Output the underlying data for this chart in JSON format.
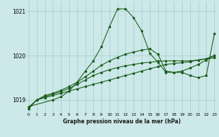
{
  "title": "Graphe pression niveau de la mer (hPa)",
  "background_color": "#cce8e8",
  "grid_color": "#aad0d0",
  "line_color": "#1a5c1a",
  "xlim": [
    -0.3,
    23.3
  ],
  "ylim": [
    1018.72,
    1021.22
  ],
  "yticks": [
    1019,
    1020,
    1021
  ],
  "xticks": [
    0,
    1,
    2,
    3,
    4,
    5,
    6,
    7,
    8,
    9,
    10,
    11,
    12,
    13,
    14,
    15,
    16,
    17,
    18,
    19,
    20,
    21,
    22,
    23
  ],
  "series": [
    {
      "x": [
        0,
        1,
        2,
        3,
        4,
        5,
        6,
        7,
        8,
        9,
        10,
        11,
        12,
        13,
        14,
        15,
        16,
        17,
        18,
        19,
        20,
        21,
        22,
        23
      ],
      "y": [
        1018.8,
        1019.0,
        1019.05,
        1019.1,
        1019.15,
        1019.2,
        1019.25,
        1019.3,
        1019.35,
        1019.4,
        1019.45,
        1019.5,
        1019.55,
        1019.6,
        1019.65,
        1019.7,
        1019.75,
        1019.8,
        1019.82,
        1019.84,
        1019.86,
        1019.9,
        1019.92,
        1019.95
      ]
    },
    {
      "x": [
        0,
        1,
        2,
        3,
        4,
        5,
        6,
        7,
        8,
        9,
        10,
        11,
        12,
        13,
        14,
        15,
        16,
        17,
        18,
        19,
        20,
        21,
        22,
        23
      ],
      "y": [
        1018.82,
        1019.0,
        1019.07,
        1019.13,
        1019.19,
        1019.26,
        1019.35,
        1019.45,
        1019.55,
        1019.62,
        1019.68,
        1019.73,
        1019.77,
        1019.8,
        1019.83,
        1019.85,
        1019.87,
        1019.88,
        1019.88,
        1019.88,
        1019.88,
        1019.9,
        1019.93,
        1020.0
      ]
    },
    {
      "x": [
        0,
        1,
        2,
        3,
        4,
        5,
        6,
        7,
        8,
        9,
        10,
        11,
        12,
        13,
        14,
        15,
        16,
        17,
        18,
        19,
        20,
        21,
        22,
        23
      ],
      "y": [
        1018.84,
        1019.0,
        1019.1,
        1019.15,
        1019.22,
        1019.3,
        1019.4,
        1019.52,
        1019.65,
        1019.78,
        1019.88,
        1019.96,
        1020.03,
        1020.08,
        1020.12,
        1020.15,
        1020.03,
        1019.65,
        1019.62,
        1019.65,
        1019.72,
        1019.8,
        1019.9,
        1020.0
      ]
    },
    {
      "x": [
        0,
        3,
        4,
        5,
        6,
        7,
        8,
        9,
        10,
        11,
        12,
        13,
        14,
        15,
        16,
        17,
        18,
        19,
        20,
        21,
        22,
        23
      ],
      "y": [
        1018.85,
        1019.0,
        1019.07,
        1019.2,
        1019.4,
        1019.65,
        1019.88,
        1020.2,
        1020.65,
        1021.05,
        1021.05,
        1020.85,
        1020.55,
        1020.05,
        1019.85,
        1019.62,
        1019.62,
        1019.62,
        1019.55,
        1019.5,
        1019.55,
        1020.5
      ]
    }
  ]
}
